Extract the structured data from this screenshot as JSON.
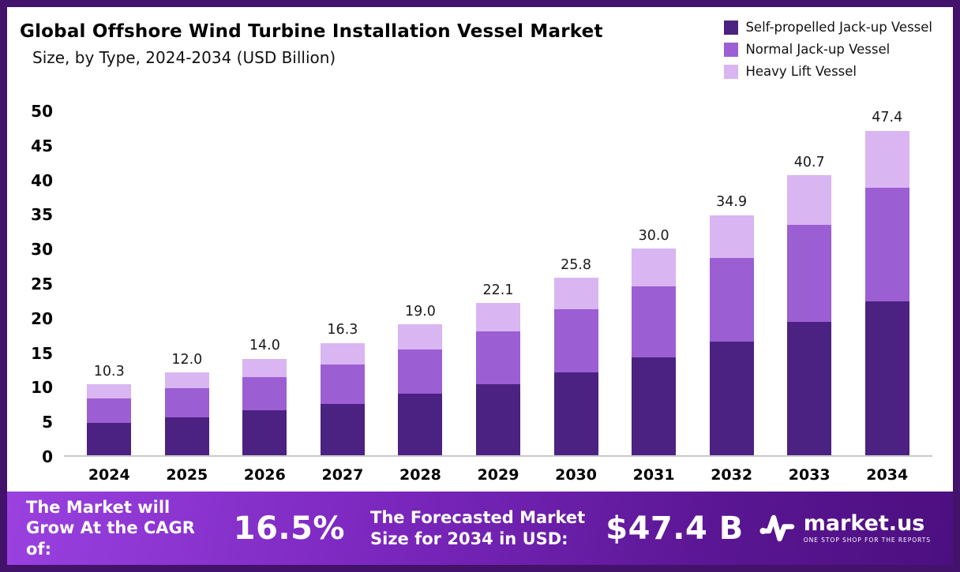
{
  "header": {
    "title": "Global Offshore Wind Turbine Installation Vessel Market",
    "subtitle": "Size, by Type, 2024-2034 (USD Billion)"
  },
  "chart_data": {
    "type": "bar",
    "stacked": true,
    "title": "Global Offshore Wind Turbine Installation Vessel Market Size, by Type, 2024-2034 (USD Billion)",
    "categories": [
      "2024",
      "2025",
      "2026",
      "2027",
      "2028",
      "2029",
      "2030",
      "2031",
      "2032",
      "2033",
      "2034"
    ],
    "series": [
      {
        "name": "Self-propelled Jack-up Vessel",
        "color": "#4b2181",
        "values": [
          4.7,
          5.5,
          6.5,
          7.5,
          8.9,
          10.3,
          12.0,
          14.2,
          16.5,
          19.4,
          22.5
        ]
      },
      {
        "name": "Normal Jack-up Vessel",
        "color": "#9c5ed3",
        "values": [
          3.6,
          4.2,
          4.8,
          5.7,
          6.5,
          7.7,
          9.2,
          10.4,
          12.2,
          14.1,
          16.5
        ]
      },
      {
        "name": "Heavy Lift Vessel",
        "color": "#d9b5f2",
        "values": [
          2.0,
          2.3,
          2.7,
          3.1,
          3.6,
          4.1,
          4.6,
          5.4,
          6.2,
          7.2,
          8.4
        ]
      }
    ],
    "totals": [
      10.3,
      12.0,
      14.0,
      16.3,
      19.0,
      22.1,
      25.8,
      30.0,
      34.9,
      40.7,
      47.4
    ],
    "ylim": [
      0,
      50
    ],
    "yticks": [
      0,
      5,
      10,
      15,
      20,
      25,
      30,
      35,
      40,
      45,
      50
    ],
    "xlabel": "",
    "ylabel": "",
    "grid": false,
    "legend_position": "top-right"
  },
  "footer": {
    "cagr_label": "The Market will Grow At the CAGR of:",
    "cagr_value": "16.5%",
    "forecast_label": "The Forecasted Market Size for 2034 in USD:",
    "forecast_value": "$47.4 B",
    "brand_icon": "market-us-logo-icon",
    "brand": "market.us",
    "brand_tagline": "ONE STOP SHOP FOR THE REPORTS"
  }
}
